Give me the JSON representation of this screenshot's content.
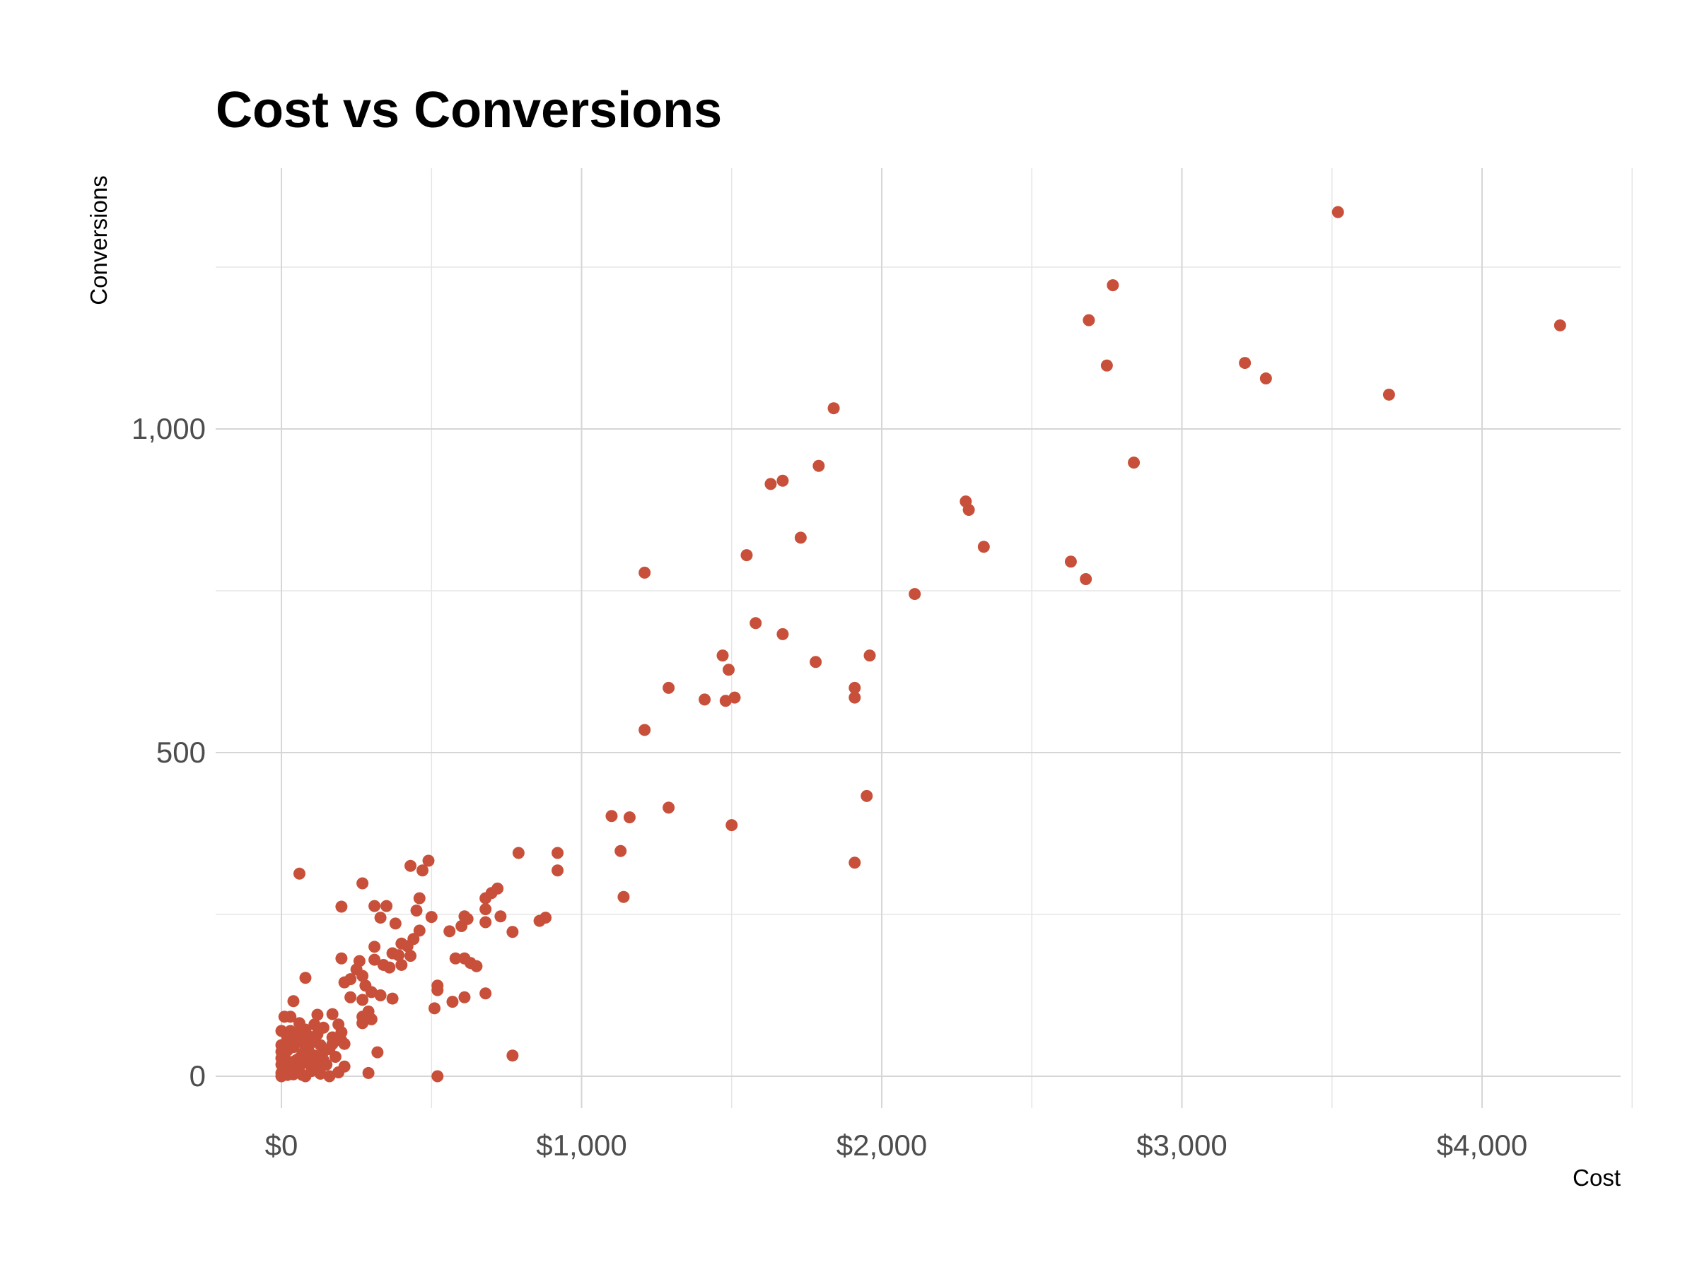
{
  "chart_data": {
    "type": "scatter",
    "title": "Cost vs Conversions",
    "xlabel": "Cost",
    "ylabel": "Conversions",
    "xlim": [
      -200,
      4500
    ],
    "ylim": [
      -50,
      1400
    ],
    "x_ticks": [
      0,
      1000,
      2000,
      3000,
      4000
    ],
    "x_tick_labels": [
      "$0",
      "$1,000",
      "$2,000",
      "$3,000",
      "$4,000"
    ],
    "y_ticks": [
      0,
      500,
      1000
    ],
    "y_tick_labels": [
      "0",
      "500",
      "1,000"
    ],
    "grid": true,
    "legend": "none",
    "point_color": "#c8503a",
    "series": [
      {
        "values": [
          [
            3520,
            1335
          ],
          [
            2770,
            1222
          ],
          [
            2690,
            1168
          ],
          [
            2750,
            1098
          ],
          [
            3210,
            1102
          ],
          [
            3280,
            1078
          ],
          [
            4260,
            1160
          ],
          [
            3690,
            1053
          ],
          [
            1840,
            1032
          ],
          [
            2840,
            948
          ],
          [
            1790,
            943
          ],
          [
            1670,
            920
          ],
          [
            1630,
            915
          ],
          [
            2280,
            888
          ],
          [
            2290,
            875
          ],
          [
            2340,
            818
          ],
          [
            1730,
            832
          ],
          [
            1550,
            805
          ],
          [
            2630,
            795
          ],
          [
            2680,
            768
          ],
          [
            1210,
            778
          ],
          [
            2110,
            745
          ],
          [
            1580,
            700
          ],
          [
            1670,
            683
          ],
          [
            1470,
            650
          ],
          [
            1960,
            650
          ],
          [
            1780,
            640
          ],
          [
            1490,
            628
          ],
          [
            1290,
            600
          ],
          [
            1910,
            600
          ],
          [
            1410,
            582
          ],
          [
            1480,
            580
          ],
          [
            1510,
            585
          ],
          [
            1910,
            585
          ],
          [
            1210,
            535
          ],
          [
            1950,
            433
          ],
          [
            1290,
            415
          ],
          [
            1100,
            402
          ],
          [
            1160,
            400
          ],
          [
            1500,
            388
          ],
          [
            1130,
            348
          ],
          [
            790,
            345
          ],
          [
            920,
            345
          ],
          [
            1910,
            330
          ],
          [
            920,
            318
          ],
          [
            1140,
            277
          ],
          [
            490,
            333
          ],
          [
            430,
            325
          ],
          [
            470,
            318
          ],
          [
            60,
            313
          ],
          [
            270,
            298
          ],
          [
            720,
            290
          ],
          [
            700,
            283
          ],
          [
            680,
            275
          ],
          [
            460,
            275
          ],
          [
            200,
            262
          ],
          [
            310,
            263
          ],
          [
            350,
            263
          ],
          [
            450,
            256
          ],
          [
            680,
            258
          ],
          [
            730,
            247
          ],
          [
            610,
            247
          ],
          [
            500,
            246
          ],
          [
            620,
            243
          ],
          [
            880,
            245
          ],
          [
            860,
            240
          ],
          [
            680,
            238
          ],
          [
            330,
            245
          ],
          [
            380,
            236
          ],
          [
            600,
            232
          ],
          [
            460,
            225
          ],
          [
            560,
            224
          ],
          [
            770,
            223
          ],
          [
            440,
            212
          ],
          [
            400,
            205
          ],
          [
            420,
            201
          ],
          [
            310,
            200
          ],
          [
            370,
            190
          ],
          [
            390,
            187
          ],
          [
            430,
            186
          ],
          [
            580,
            182
          ],
          [
            610,
            182
          ],
          [
            200,
            182
          ],
          [
            260,
            178
          ],
          [
            310,
            180
          ],
          [
            650,
            170
          ],
          [
            630,
            175
          ],
          [
            340,
            172
          ],
          [
            400,
            172
          ],
          [
            360,
            168
          ],
          [
            250,
            165
          ],
          [
            270,
            155
          ],
          [
            80,
            152
          ],
          [
            230,
            150
          ],
          [
            210,
            145
          ],
          [
            520,
            140
          ],
          [
            280,
            140
          ],
          [
            520,
            133
          ],
          [
            300,
            130
          ],
          [
            330,
            125
          ],
          [
            610,
            122
          ],
          [
            680,
            128
          ],
          [
            370,
            120
          ],
          [
            230,
            122
          ],
          [
            570,
            115
          ],
          [
            40,
            116
          ],
          [
            270,
            118
          ],
          [
            510,
            105
          ],
          [
            290,
            100
          ],
          [
            120,
            95
          ],
          [
            170,
            96
          ],
          [
            10,
            92
          ],
          [
            30,
            92
          ],
          [
            270,
            92
          ],
          [
            300,
            88
          ],
          [
            270,
            82
          ],
          [
            60,
            82
          ],
          [
            110,
            80
          ],
          [
            190,
            80
          ],
          [
            140,
            75
          ],
          [
            0,
            70
          ],
          [
            80,
            72
          ],
          [
            200,
            68
          ],
          [
            120,
            65
          ],
          [
            20,
            60
          ],
          [
            170,
            60
          ],
          [
            60,
            55
          ],
          [
            200,
            55
          ],
          [
            100,
            52
          ],
          [
            210,
            50
          ],
          [
            0,
            48
          ],
          [
            130,
            48
          ],
          [
            40,
            45
          ],
          [
            160,
            42
          ],
          [
            90,
            40
          ],
          [
            320,
            37
          ],
          [
            10,
            35
          ],
          [
            110,
            32
          ],
          [
            180,
            30
          ],
          [
            60,
            28
          ],
          [
            770,
            32
          ],
          [
            140,
            25
          ],
          [
            30,
            22
          ],
          [
            90,
            20
          ],
          [
            0,
            18
          ],
          [
            210,
            15
          ],
          [
            120,
            12
          ],
          [
            50,
            10
          ],
          [
            100,
            8
          ],
          [
            190,
            6
          ],
          [
            290,
            5
          ],
          [
            0,
            5
          ],
          [
            20,
            2
          ],
          [
            520,
            0
          ],
          [
            80,
            0
          ],
          [
            160,
            0
          ],
          [
            40,
            3
          ],
          [
            130,
            4
          ],
          [
            60,
            15
          ],
          [
            20,
            40
          ],
          [
            70,
            35
          ],
          [
            150,
            18
          ],
          [
            0,
            28
          ],
          [
            90,
            62
          ],
          [
            30,
            70
          ],
          [
            110,
            10
          ],
          [
            0,
            0
          ],
          [
            10,
            12
          ],
          [
            50,
            25
          ],
          [
            140,
            38
          ],
          [
            170,
            50
          ],
          [
            80,
            45
          ],
          [
            20,
            55
          ],
          [
            60,
            68
          ],
          [
            100,
            30
          ],
          [
            30,
            8
          ],
          [
            120,
            20
          ],
          [
            0,
            38
          ],
          [
            70,
            2
          ],
          [
            40,
            60
          ]
        ]
      }
    ]
  }
}
